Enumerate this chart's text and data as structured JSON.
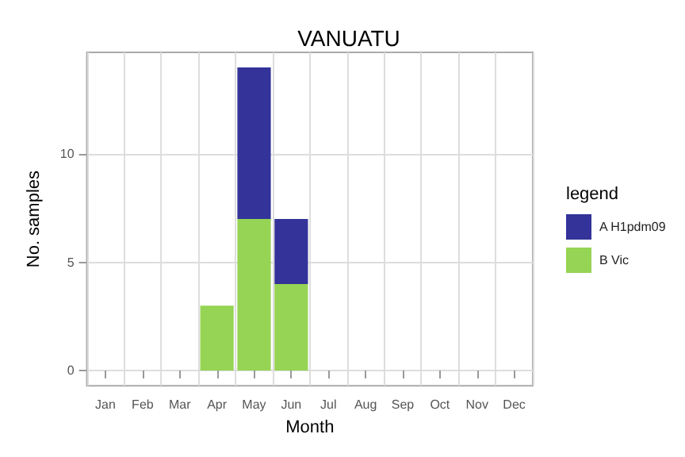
{
  "chart_data": {
    "type": "bar",
    "title": "VANUATU",
    "xlabel": "Month",
    "ylabel": "No. samples",
    "legend_title": "legend",
    "categories": [
      "Jan",
      "Feb",
      "Mar",
      "Apr",
      "May",
      "Jun",
      "Jul",
      "Aug",
      "Sep",
      "Oct",
      "Nov",
      "Dec"
    ],
    "stacked": true,
    "series": [
      {
        "name": "B Vic",
        "color": "#95d454",
        "values": [
          0,
          0,
          0,
          3,
          7,
          4,
          0,
          0,
          0,
          0,
          0,
          0
        ]
      },
      {
        "name": "A H1pdm09",
        "color": "#333399",
        "values": [
          0,
          0,
          0,
          0,
          7,
          3,
          0,
          0,
          0,
          0,
          0,
          0
        ]
      }
    ],
    "ylim": [
      -0.7,
      14.7
    ],
    "yticks": [
      0,
      5,
      10
    ],
    "grid": true,
    "legend": "right"
  }
}
